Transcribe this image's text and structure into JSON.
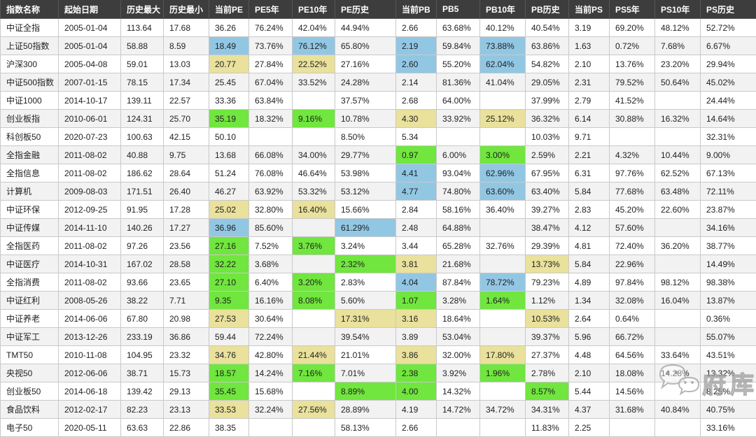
{
  "colors": {
    "highlight_blue": "#92c7e4",
    "highlight_green": "#70e63e",
    "highlight_yellow": "#e9e19c",
    "header_bg": "#3d3d3d",
    "header_text": "#ffffff",
    "row_alt_bg": "#f2f2f2",
    "border": "#c9c9c9"
  },
  "watermark": {
    "icon": "wechat-icon",
    "text": "府库"
  },
  "table": {
    "columns": [
      "指数名称",
      "起始日期",
      "历史最大",
      "历史最小",
      "当前PE",
      "PE5年",
      "PE10年",
      "PE历史",
      "当前PB",
      "PB5",
      "PB10年",
      "PB历史",
      "当前PS",
      "PS5年",
      "PS10年",
      "PS历史"
    ],
    "rows": [
      {
        "cells": [
          "中证全指",
          "2005-01-04",
          "113.64",
          "17.68",
          "36.26",
          "76.24%",
          "42.04%",
          "44.94%",
          "2.66",
          "63.68%",
          "40.12%",
          "40.54%",
          "3.19",
          "69.20%",
          "48.12%",
          "52.72%"
        ],
        "hl": {}
      },
      {
        "cells": [
          "上证50指数",
          "2005-01-04",
          "58.88",
          "8.59",
          "18.49",
          "73.76%",
          "76.12%",
          "65.80%",
          "2.19",
          "59.84%",
          "73.88%",
          "63.86%",
          "1.63",
          "0.72%",
          "7.68%",
          "6.67%"
        ],
        "hl": {
          "4": "blue",
          "6": "blue",
          "8": "blue",
          "10": "blue"
        }
      },
      {
        "cells": [
          "沪深300",
          "2005-04-08",
          "59.01",
          "13.03",
          "20.77",
          "27.84%",
          "22.52%",
          "27.16%",
          "2.60",
          "55.20%",
          "62.04%",
          "54.82%",
          "2.10",
          "13.76%",
          "23.20%",
          "29.94%"
        ],
        "hl": {
          "4": "yellow",
          "6": "yellow",
          "8": "blue",
          "10": "blue"
        }
      },
      {
        "cells": [
          "中证500指数",
          "2007-01-15",
          "78.15",
          "17.34",
          "25.45",
          "67.04%",
          "33.52%",
          "24.28%",
          "2.14",
          "81.36%",
          "41.04%",
          "29.05%",
          "2.31",
          "79.52%",
          "50.64%",
          "45.02%"
        ],
        "hl": {}
      },
      {
        "cells": [
          "中证1000",
          "2014-10-17",
          "139.11",
          "22.57",
          "33.36",
          "63.84%",
          "",
          "37.57%",
          "2.68",
          "64.00%",
          "",
          "37.99%",
          "2.79",
          "41.52%",
          "",
          "24.44%"
        ],
        "hl": {}
      },
      {
        "cells": [
          "创业板指",
          "2010-06-01",
          "124.31",
          "25.70",
          "35.19",
          "18.32%",
          "9.16%",
          "10.78%",
          "4.30",
          "33.92%",
          "25.12%",
          "36.32%",
          "6.14",
          "30.88%",
          "16.32%",
          "14.64%"
        ],
        "hl": {
          "4": "green",
          "6": "green",
          "8": "yellow",
          "10": "yellow"
        }
      },
      {
        "cells": [
          "科创板50",
          "2020-07-23",
          "100.63",
          "42.15",
          "50.10",
          "",
          "",
          "8.50%",
          "5.34",
          "",
          "",
          "10.03%",
          "9.71",
          "",
          "",
          "32.31%"
        ],
        "hl": {}
      },
      {
        "cells": [
          "全指金融",
          "2011-08-02",
          "40.88",
          "9.75",
          "13.68",
          "66.08%",
          "34.00%",
          "29.77%",
          "0.97",
          "6.00%",
          "3.00%",
          "2.59%",
          "2.21",
          "4.32%",
          "10.44%",
          "9.00%"
        ],
        "hl": {
          "8": "green",
          "10": "green"
        }
      },
      {
        "cells": [
          "全指信息",
          "2011-08-02",
          "186.62",
          "28.64",
          "51.24",
          "76.08%",
          "46.64%",
          "53.98%",
          "4.41",
          "93.04%",
          "62.96%",
          "67.95%",
          "6.31",
          "97.76%",
          "62.52%",
          "67.13%"
        ],
        "hl": {
          "8": "blue",
          "10": "blue"
        }
      },
      {
        "cells": [
          "计算机",
          "2009-08-03",
          "171.51",
          "26.40",
          "46.27",
          "63.92%",
          "53.32%",
          "53.12%",
          "4.77",
          "74.80%",
          "63.60%",
          "63.40%",
          "5.84",
          "77.68%",
          "63.48%",
          "72.11%"
        ],
        "hl": {
          "8": "blue",
          "10": "blue"
        }
      },
      {
        "cells": [
          "中证环保",
          "2012-09-25",
          "91.95",
          "17.28",
          "25.02",
          "32.80%",
          "16.40%",
          "15.66%",
          "2.84",
          "58.16%",
          "36.40%",
          "39.27%",
          "2.83",
          "45.20%",
          "22.60%",
          "23.87%"
        ],
        "hl": {
          "4": "yellow",
          "6": "yellow"
        }
      },
      {
        "cells": [
          "中证传媒",
          "2014-11-10",
          "140.26",
          "17.27",
          "36.96",
          "85.60%",
          "",
          "61.29%",
          "2.48",
          "64.88%",
          "",
          "38.47%",
          "4.12",
          "57.60%",
          "",
          "34.16%"
        ],
        "hl": {
          "4": "blue",
          "7": "blue"
        }
      },
      {
        "cells": [
          "全指医药",
          "2011-08-02",
          "97.26",
          "23.56",
          "27.16",
          "7.52%",
          "3.76%",
          "3.24%",
          "3.44",
          "65.28%",
          "32.76%",
          "29.39%",
          "4.81",
          "72.40%",
          "36.20%",
          "38.77%"
        ],
        "hl": {
          "4": "green",
          "6": "green"
        }
      },
      {
        "cells": [
          "中证医疗",
          "2014-10-31",
          "167.02",
          "28.58",
          "32.22",
          "3.68%",
          "",
          "2.32%",
          "3.81",
          "21.68%",
          "",
          "13.73%",
          "5.84",
          "22.96%",
          "",
          "14.49%"
        ],
        "hl": {
          "4": "green",
          "7": "green",
          "8": "yellow",
          "11": "yellow"
        }
      },
      {
        "cells": [
          "全指消费",
          "2011-08-02",
          "93.66",
          "23.65",
          "27.10",
          "6.40%",
          "3.20%",
          "2.83%",
          "4.04",
          "87.84%",
          "78.72%",
          "79.23%",
          "4.89",
          "97.84%",
          "98.12%",
          "98.38%"
        ],
        "hl": {
          "4": "green",
          "6": "green",
          "8": "blue",
          "10": "blue"
        }
      },
      {
        "cells": [
          "中证红利",
          "2008-05-26",
          "38.22",
          "7.71",
          "9.35",
          "16.16%",
          "8.08%",
          "5.60%",
          "1.07",
          "3.28%",
          "1.64%",
          "1.12%",
          "1.34",
          "32.08%",
          "16.04%",
          "13.87%"
        ],
        "hl": {
          "4": "green",
          "6": "green",
          "8": "green",
          "10": "green"
        }
      },
      {
        "cells": [
          "中证养老",
          "2014-06-06",
          "67.80",
          "20.98",
          "27.53",
          "30.64%",
          "",
          "17.31%",
          "3.16",
          "18.64%",
          "",
          "10.53%",
          "2.64",
          "0.64%",
          "",
          "0.36%"
        ],
        "hl": {
          "4": "yellow",
          "7": "yellow",
          "8": "yellow",
          "11": "yellow"
        }
      },
      {
        "cells": [
          "中证军工",
          "2013-12-26",
          "233.19",
          "36.86",
          "59.44",
          "72.24%",
          "",
          "39.54%",
          "3.89",
          "53.04%",
          "",
          "39.37%",
          "5.96",
          "66.72%",
          "",
          "55.07%"
        ],
        "hl": {}
      },
      {
        "cells": [
          "TMT50",
          "2010-11-08",
          "104.95",
          "23.32",
          "34.76",
          "42.80%",
          "21.44%",
          "21.01%",
          "3.86",
          "32.00%",
          "17.80%",
          "27.37%",
          "4.48",
          "64.56%",
          "33.64%",
          "43.51%"
        ],
        "hl": {
          "4": "yellow",
          "6": "yellow",
          "8": "yellow",
          "10": "yellow"
        }
      },
      {
        "cells": [
          "央视50",
          "2012-06-06",
          "38.71",
          "15.73",
          "18.57",
          "14.24%",
          "7.16%",
          "7.01%",
          "2.38",
          "3.92%",
          "1.96%",
          "2.78%",
          "2.10",
          "18.08%",
          "14.28%",
          "13.32%"
        ],
        "hl": {
          "4": "green",
          "6": "green",
          "8": "green",
          "10": "green"
        }
      },
      {
        "cells": [
          "创业板50",
          "2014-06-18",
          "139.42",
          "29.13",
          "35.45",
          "15.68%",
          "",
          "8.89%",
          "4.00",
          "14.32%",
          "",
          "8.57%",
          "5.44",
          "14.56%",
          "",
          "8.25%"
        ],
        "hl": {
          "4": "green",
          "7": "green",
          "8": "green",
          "11": "green"
        }
      },
      {
        "cells": [
          "食品饮料",
          "2012-02-17",
          "82.23",
          "23.13",
          "33.53",
          "32.24%",
          "27.56%",
          "28.89%",
          "4.19",
          "14.72%",
          "34.72%",
          "34.31%",
          "4.37",
          "31.68%",
          "40.84%",
          "40.75%"
        ],
        "hl": {
          "4": "yellow",
          "6": "yellow"
        }
      },
      {
        "cells": [
          "电子50",
          "2020-05-11",
          "63.63",
          "22.86",
          "38.35",
          "",
          "",
          "58.13%",
          "2.66",
          "",
          "",
          "11.83%",
          "2.25",
          "",
          "",
          "33.16%"
        ],
        "hl": {}
      }
    ]
  }
}
